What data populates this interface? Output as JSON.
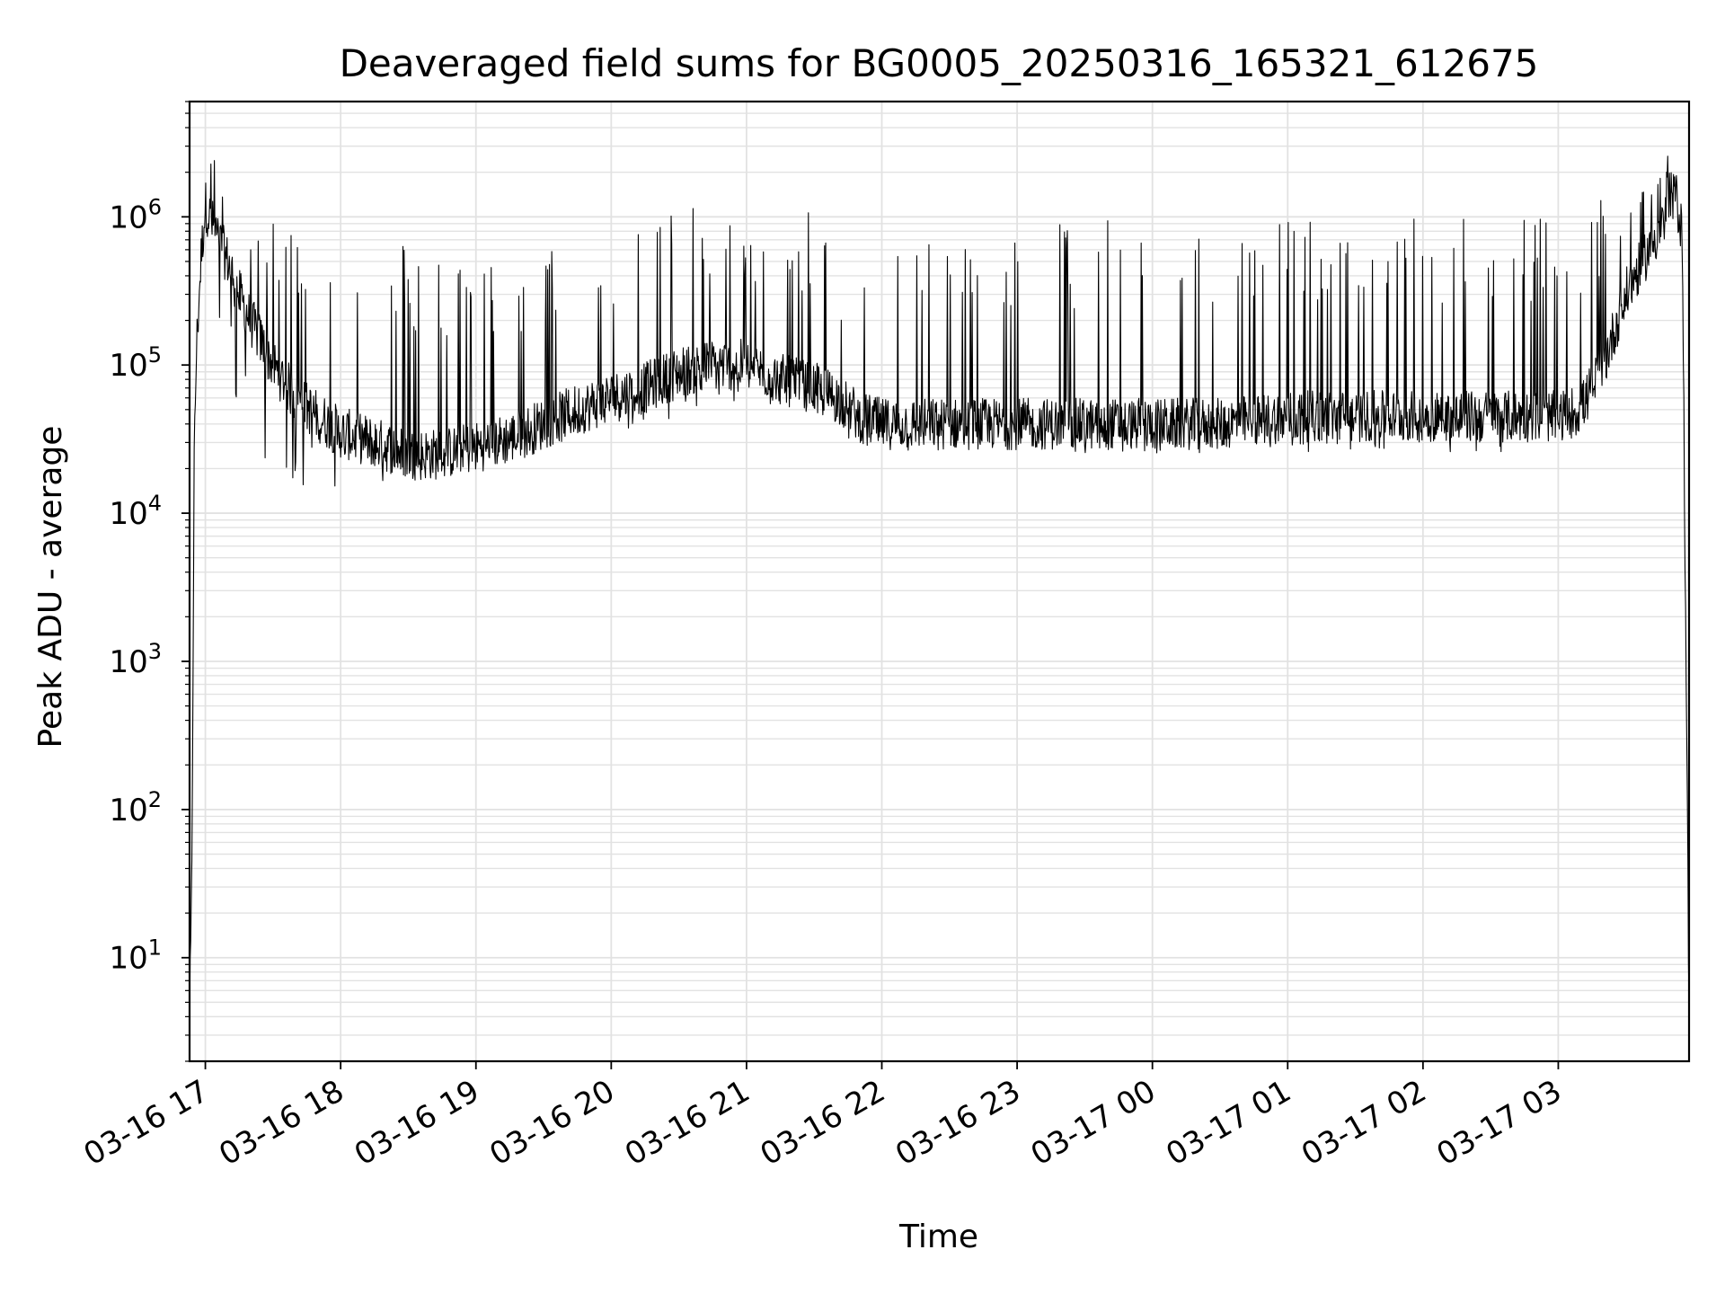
{
  "chart_data": {
    "type": "line",
    "title": "Deaveraged field sums for BG0005_20250316_165321_612675",
    "xlabel": "Time",
    "ylabel": "Peak ADU - average",
    "yscale": "log",
    "ylim": [
      2,
      6000000
    ],
    "xlim": [
      "2025-03-16 16:53",
      "2025-03-17 03:58"
    ],
    "grid": true,
    "line_color": "#000000",
    "grid_color": "#e2e2e2",
    "x_tick_labels": [
      "03-16 17",
      "03-16 18",
      "03-16 19",
      "03-16 20",
      "03-16 21",
      "03-16 22",
      "03-16 23",
      "03-17 00",
      "03-17 01",
      "03-17 02",
      "03-17 03"
    ],
    "y_tick_labels": [
      {
        "base": "10",
        "exp": "1"
      },
      {
        "base": "10",
        "exp": "2"
      },
      {
        "base": "10",
        "exp": "3"
      },
      {
        "base": "10",
        "exp": "4"
      },
      {
        "base": "10",
        "exp": "5"
      },
      {
        "base": "10",
        "exp": "6"
      }
    ],
    "series": [
      {
        "x": [
          "2025-03-16 16:53",
          "2025-03-16 16:54",
          "2025-03-16 16:55",
          "2025-03-16 16:56",
          "2025-03-16 16:58",
          "2025-03-16 17:00",
          "2025-03-16 17:03",
          "2025-03-16 17:06",
          "2025-03-16 17:10",
          "2025-03-16 17:15",
          "2025-03-16 17:20",
          "2025-03-16 17:30",
          "2025-03-16 17:40",
          "2025-03-16 17:50",
          "2025-03-16 18:00",
          "2025-03-16 18:15",
          "2025-03-16 18:30",
          "2025-03-16 18:45",
          "2025-03-16 19:00",
          "2025-03-16 19:15",
          "2025-03-16 19:30",
          "2025-03-16 19:45",
          "2025-03-16 20:00",
          "2025-03-16 20:15",
          "2025-03-16 20:30",
          "2025-03-16 20:45",
          "2025-03-16 21:00",
          "2025-03-16 21:15",
          "2025-03-16 21:30",
          "2025-03-16 21:40",
          "2025-03-16 21:50",
          "2025-03-16 22:00",
          "2025-03-16 22:30",
          "2025-03-16 23:00",
          "2025-03-16 23:30",
          "2025-03-17 00:00",
          "2025-03-17 00:30",
          "2025-03-17 01:00",
          "2025-03-17 01:30",
          "2025-03-17 02:00",
          "2025-03-17 02:30",
          "2025-03-17 03:00",
          "2025-03-17 03:10",
          "2025-03-17 03:20",
          "2025-03-17 03:30",
          "2025-03-17 03:40",
          "2025-03-17 03:48",
          "2025-03-17 03:52",
          "2025-03-17 03:55",
          "2025-03-17 03:58"
        ],
        "baseline": [
          4,
          30,
          20000,
          120000,
          500000,
          1200000,
          900000,
          700000,
          500000,
          300000,
          200000,
          100000,
          60000,
          45000,
          35000,
          30000,
          25000,
          25000,
          28000,
          32000,
          40000,
          50000,
          60000,
          70000,
          90000,
          100000,
          100000,
          80000,
          70000,
          60000,
          45000,
          40000,
          40000,
          40000,
          40000,
          40000,
          40000,
          45000,
          45000,
          45000,
          45000,
          45000,
          50000,
          100000,
          300000,
          600000,
          1000000,
          1400000,
          800000,
          4
        ],
        "trough": [
          4,
          30,
          20000,
          120000,
          400000,
          700000,
          500000,
          150000,
          80000,
          40000,
          25000,
          18000,
          15000,
          14000,
          13000,
          15000,
          16000,
          18000,
          22000,
          25000,
          28000,
          32000,
          35000,
          40000,
          45000,
          50000,
          55000,
          50000,
          45000,
          35000,
          28000,
          26000,
          25000,
          24000,
          24000,
          25000,
          25000,
          26000,
          26000,
          25000,
          25000,
          25000,
          30000,
          60000,
          200000,
          500000,
          900000,
          1200000,
          600000,
          4
        ],
        "peak": [
          4,
          30,
          20000,
          150000,
          900000,
          1600000,
          3200000,
          2500000,
          1300000,
          1000000,
          900000,
          900000,
          900000,
          800000,
          900000,
          800000,
          700000,
          650000,
          500000,
          500000,
          600000,
          700000,
          800000,
          1100000,
          1200000,
          1100000,
          900000,
          800000,
          1200000,
          600000,
          400000,
          600000,
          800000,
          1000000,
          1000000,
          1100000,
          1100000,
          1100000,
          1100000,
          1100000,
          1100000,
          1200000,
          1200000,
          1300000,
          1400000,
          1500000,
          2800000,
          1600000,
          1000000,
          4
        ]
      }
    ]
  }
}
